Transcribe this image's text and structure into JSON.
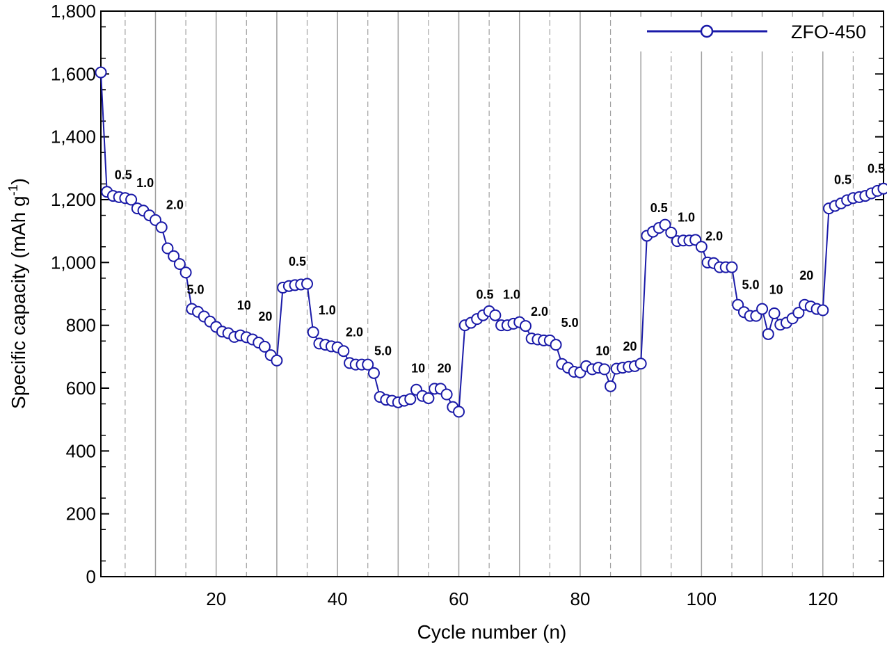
{
  "chart_data": {
    "type": "line",
    "xlabel": "Cycle number (n)",
    "ylabel": "Specific capacity (mAh g",
    "ylabel_sup": "-1",
    "ylabel_end": ")",
    "xlim": [
      1,
      130
    ],
    "ylim": [
      0,
      1800
    ],
    "x_ticks": [
      20,
      40,
      60,
      80,
      100,
      120
    ],
    "y_ticks": [
      0,
      200,
      400,
      600,
      800,
      1000,
      1200,
      1400,
      1600,
      1800
    ],
    "y_tick_labels": [
      "0",
      "200",
      "400",
      "600",
      "800",
      "1,000",
      "1,200",
      "1,400",
      "1,600",
      "1,800"
    ],
    "grid": {
      "solid_x": [
        10,
        20,
        30,
        40,
        50,
        60,
        70,
        80,
        90,
        100,
        110,
        120
      ],
      "dashed_x": [
        5,
        15,
        25,
        35,
        45,
        55,
        65,
        75,
        85,
        95,
        105,
        115,
        125
      ]
    },
    "legend_position": "top-right",
    "colors": {
      "series": "#1a1aa8",
      "marker_fill": "#ffffff",
      "solid_grid": "#a0a0a0",
      "dashed_grid": "#a0a0a0"
    },
    "series": [
      {
        "name": "ZFO-450",
        "marker": "open-circle",
        "x": [
          1,
          2,
          3,
          4,
          5,
          6,
          7,
          8,
          9,
          10,
          11,
          12,
          13,
          14,
          15,
          16,
          17,
          18,
          19,
          20,
          21,
          22,
          23,
          24,
          25,
          26,
          27,
          28,
          29,
          30,
          31,
          32,
          33,
          34,
          35,
          36,
          37,
          38,
          39,
          40,
          41,
          42,
          43,
          44,
          45,
          46,
          47,
          48,
          49,
          50,
          51,
          52,
          53,
          54,
          55,
          56,
          57,
          58,
          59,
          60,
          61,
          62,
          63,
          64,
          65,
          66,
          67,
          68,
          69,
          70,
          71,
          72,
          73,
          74,
          75,
          76,
          77,
          78,
          79,
          80,
          81,
          82,
          83,
          84,
          85,
          86,
          87,
          88,
          89,
          90,
          91,
          92,
          93,
          94,
          95,
          96,
          97,
          98,
          99,
          100,
          101,
          102,
          103,
          104,
          105,
          106,
          107,
          108,
          109,
          110,
          111,
          112,
          113,
          114,
          115,
          116,
          117,
          118,
          119,
          120,
          121,
          122,
          123,
          124,
          125,
          126,
          127,
          128,
          129,
          130
        ],
        "y": [
          1605,
          1225,
          1212,
          1208,
          1205,
          1200,
          1172,
          1165,
          1150,
          1135,
          1112,
          1045,
          1020,
          995,
          968,
          852,
          843,
          828,
          812,
          795,
          780,
          775,
          763,
          768,
          762,
          755,
          745,
          732,
          705,
          688,
          920,
          925,
          928,
          930,
          932,
          778,
          742,
          738,
          733,
          730,
          718,
          680,
          675,
          675,
          675,
          648,
          572,
          563,
          560,
          555,
          560,
          565,
          595,
          575,
          568,
          598,
          598,
          580,
          540,
          525,
          800,
          808,
          820,
          832,
          845,
          832,
          800,
          800,
          805,
          810,
          798,
          758,
          755,
          752,
          752,
          738,
          677,
          665,
          652,
          650,
          670,
          660,
          665,
          660,
          606,
          662,
          665,
          668,
          670,
          678,
          1085,
          1098,
          1110,
          1120,
          1095,
          1068,
          1070,
          1070,
          1072,
          1050,
          1000,
          998,
          985,
          985,
          985,
          865,
          842,
          830,
          830,
          852,
          772,
          838,
          802,
          808,
          822,
          840,
          865,
          860,
          852,
          848,
          1172,
          1180,
          1188,
          1198,
          1205,
          1208,
          1212,
          1220,
          1228,
          1235
        ]
      }
    ],
    "annotations": [
      {
        "text": "0.5",
        "x": 4.7,
        "y": 1265
      },
      {
        "text": "1.0",
        "x": 8.3,
        "y": 1240
      },
      {
        "text": "2.0",
        "x": 13.2,
        "y": 1170
      },
      {
        "text": "5.0",
        "x": 16.6,
        "y": 900
      },
      {
        "text": "10",
        "x": 24.6,
        "y": 850
      },
      {
        "text": "20",
        "x": 28.1,
        "y": 815
      },
      {
        "text": "0.5",
        "x": 33.4,
        "y": 990
      },
      {
        "text": "1.0",
        "x": 38.3,
        "y": 835
      },
      {
        "text": "2.0",
        "x": 42.8,
        "y": 765
      },
      {
        "text": "5.0",
        "x": 47.5,
        "y": 705
      },
      {
        "text": "10",
        "x": 53.3,
        "y": 650
      },
      {
        "text": "20",
        "x": 57.6,
        "y": 650
      },
      {
        "text": "0.5",
        "x": 64.3,
        "y": 885
      },
      {
        "text": "1.0",
        "x": 68.7,
        "y": 885
      },
      {
        "text": "2.0",
        "x": 73.3,
        "y": 830
      },
      {
        "text": "5.0",
        "x": 78.3,
        "y": 795
      },
      {
        "text": "10",
        "x": 83.7,
        "y": 705
      },
      {
        "text": "20",
        "x": 88.2,
        "y": 720
      },
      {
        "text": "0.5",
        "x": 93.0,
        "y": 1160
      },
      {
        "text": "1.0",
        "x": 97.5,
        "y": 1130
      },
      {
        "text": "2.0",
        "x": 102.1,
        "y": 1070
      },
      {
        "text": "5.0",
        "x": 108.1,
        "y": 915
      },
      {
        "text": "10",
        "x": 112.3,
        "y": 900
      },
      {
        "text": "20",
        "x": 117.3,
        "y": 945
      },
      {
        "text": "0.5",
        "x": 123.3,
        "y": 1250
      },
      {
        "text": "0.5",
        "x": 128.8,
        "y": 1285
      }
    ]
  }
}
